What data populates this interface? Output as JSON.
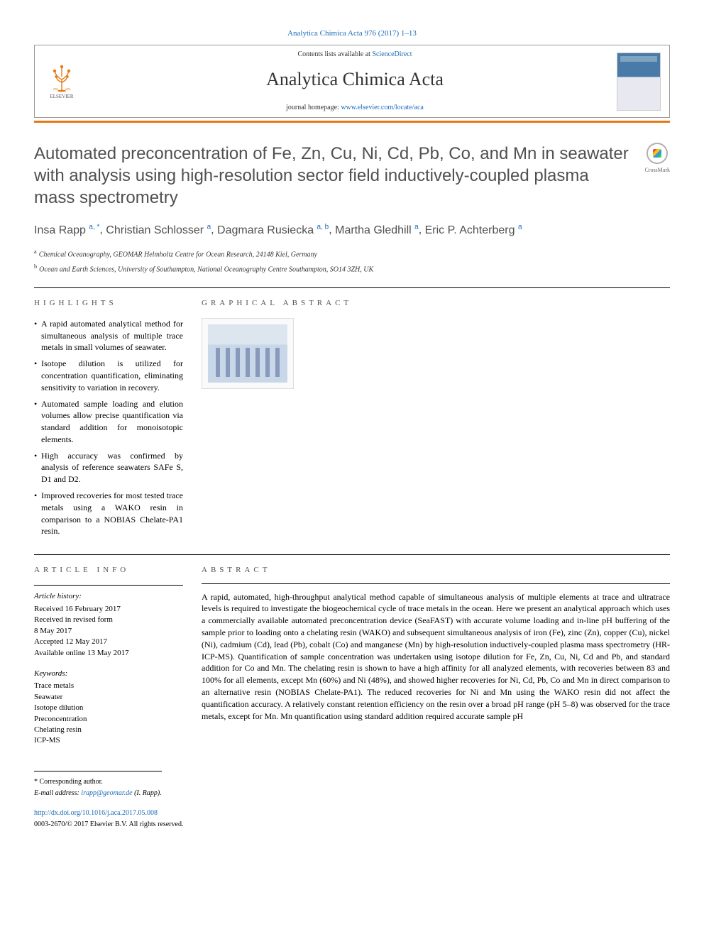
{
  "header": {
    "citation": "Analytica Chimica Acta 976 (2017) 1–13",
    "contents_prefix": "Contents lists available at ",
    "contents_link": "ScienceDirect",
    "journal_name": "Analytica Chimica Acta",
    "homepage_prefix": "journal homepage: ",
    "homepage_url": "www.elsevier.com/locate/aca",
    "elsevier_label": "ELSEVIER",
    "crossmark_label": "CrossMark"
  },
  "title": "Automated preconcentration of Fe, Zn, Cu, Ni, Cd, Pb, Co, and Mn in seawater with analysis using high-resolution sector field inductively-coupled plasma mass spectrometry",
  "authors": [
    {
      "name": "Insa Rapp",
      "sup": "a, *"
    },
    {
      "name": "Christian Schlosser",
      "sup": "a"
    },
    {
      "name": "Dagmara Rusiecka",
      "sup": "a, b"
    },
    {
      "name": "Martha Gledhill",
      "sup": "a"
    },
    {
      "name": "Eric P. Achterberg",
      "sup": "a"
    }
  ],
  "affiliations": [
    {
      "key": "a",
      "text": "Chemical Oceanography, GEOMAR Helmholtz Centre for Ocean Research, 24148 Kiel, Germany"
    },
    {
      "key": "b",
      "text": "Ocean and Earth Sciences, University of Southampton, National Oceanography Centre Southampton, SO14 3ZH, UK"
    }
  ],
  "sections": {
    "highlights_heading": "HIGHLIGHTS",
    "graphical_heading": "GRAPHICAL ABSTRACT",
    "article_info_heading": "ARTICLE INFO",
    "abstract_heading": "ABSTRACT"
  },
  "highlights": [
    "A rapid automated analytical method for simultaneous analysis of multiple trace metals in small volumes of seawater.",
    "Isotope dilution is utilized for concentration quantification, eliminating sensitivity to variation in recovery.",
    "Automated sample loading and elution volumes allow precise quantification via standard addition for monoisotopic elements.",
    "High accuracy was confirmed by analysis of reference seawaters SAFe S, D1 and D2.",
    "Improved recoveries for most tested trace metals using a WAKO resin in comparison to a NOBIAS Chelate-PA1 resin."
  ],
  "article_info": {
    "history_label": "Article history:",
    "received": "Received 16 February 2017",
    "revised_l1": "Received in revised form",
    "revised_l2": "8 May 2017",
    "accepted": "Accepted 12 May 2017",
    "online": "Available online 13 May 2017"
  },
  "keywords": {
    "label": "Keywords:",
    "items": [
      "Trace metals",
      "Seawater",
      "Isotope dilution",
      "Preconcentration",
      "Chelating resin",
      "ICP-MS"
    ]
  },
  "abstract": "A rapid, automated, high-throughput analytical method capable of simultaneous analysis of multiple elements at trace and ultratrace levels is required to investigate the biogeochemical cycle of trace metals in the ocean. Here we present an analytical approach which uses a commercially available automated preconcentration device (SeaFAST) with accurate volume loading and in-line pH buffering of the sample prior to loading onto a chelating resin (WAKO) and subsequent simultaneous analysis of iron (Fe), zinc (Zn), copper (Cu), nickel (Ni), cadmium (Cd), lead (Pb), cobalt (Co) and manganese (Mn) by high-resolution inductively-coupled plasma mass spectrometry (HR-ICP-MS). Quantification of sample concentration was undertaken using isotope dilution for Fe, Zn, Cu, Ni, Cd and Pb, and standard addition for Co and Mn. The chelating resin is shown to have a high affinity for all analyzed elements, with recoveries between 83 and 100% for all elements, except Mn (60%) and Ni (48%), and showed higher recoveries for Ni, Cd, Pb, Co and Mn in direct comparison to an alternative resin (NOBIAS Chelate-PA1). The reduced recoveries for Ni and Mn using the WAKO resin did not affect the quantification accuracy. A relatively constant retention efficiency on the resin over a broad pH range (pH 5–8) was observed for the trace metals, except for Mn. Mn quantification using standard addition required accurate sample pH",
  "footer": {
    "corresponding_label": "* Corresponding author.",
    "email_label": "E-mail address: ",
    "email": "irapp@geomar.de",
    "email_suffix": " (I. Rapp).",
    "doi_url": "http://dx.doi.org/10.1016/j.aca.2017.05.008",
    "copyright": "0003-2670/© 2017 Elsevier B.V. All rights reserved."
  },
  "colors": {
    "link": "#1a6bb8",
    "orange_bar": "#e67817",
    "heading_gray": "#505050"
  }
}
